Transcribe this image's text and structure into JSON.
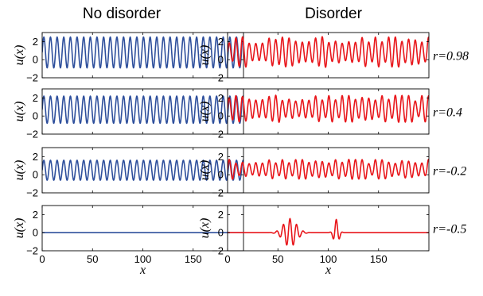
{
  "chart_data": {
    "type": "line",
    "columns": [
      {
        "title": "No disorder",
        "color": "#2e4f9c"
      },
      {
        "title": "Disorder",
        "color": "#e8161b"
      }
    ],
    "rows": [
      {
        "label": "r=0.98",
        "ylabel": "u(x)",
        "ylim": [
          -2,
          3
        ],
        "yticks": [
          "2",
          "0",
          "−2"
        ],
        "left_series": {
          "amplitude": 1.7,
          "baseline": 0.8,
          "period": 6.6
        },
        "right_series": {
          "amplitude": 1.7,
          "baseline": 0.85,
          "period": 6.6
        }
      },
      {
        "label": "r=0.4",
        "ylabel": "u(x)",
        "ylim": [
          -2,
          3
        ],
        "yticks": [
          "2",
          "0",
          "−2"
        ],
        "left_series": {
          "amplitude": 1.5,
          "baseline": 0.7,
          "period": 6.6
        },
        "right_series": {
          "amplitude": 1.5,
          "baseline": 0.8,
          "period": 6.6
        }
      },
      {
        "label": "r=-0.2",
        "ylabel": "u(x)",
        "ylim": [
          -2,
          3
        ],
        "yticks": [
          "2",
          "0",
          "−2"
        ],
        "left_series": {
          "amplitude": 1.1,
          "baseline": 0.5,
          "period": 6.6
        },
        "right_series": {
          "amplitude": 1.1,
          "baseline": 0.6,
          "period": 6.6
        }
      },
      {
        "label": "r=-0.5",
        "ylabel": "u(x)",
        "ylim": [
          -2,
          3
        ],
        "yticks": [
          "2",
          "0",
          "−2"
        ],
        "left_series": {
          "amplitude": 0,
          "baseline": 0,
          "period": 6.6
        },
        "right_series": {
          "amplitude": 0,
          "baseline": 0,
          "period": 6.6,
          "localized_packets": [
            {
              "center": 62,
              "amplitude": 1.55,
              "width": 9
            },
            {
              "center": 108,
              "amplitude": 1.45,
              "width": 3.5
            }
          ]
        }
      }
    ],
    "xlabel": "x",
    "xlim": [
      0,
      200
    ],
    "xticks": [
      "0",
      "50",
      "100",
      "150"
    ],
    "xtick_values": [
      0,
      50,
      100,
      150
    ]
  }
}
